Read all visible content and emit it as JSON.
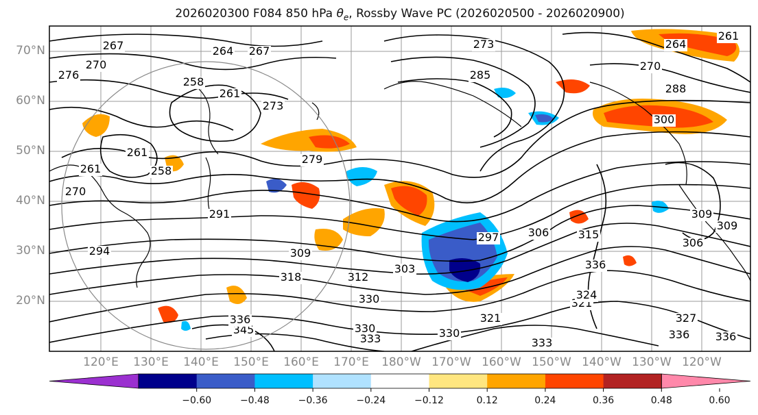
{
  "title": {
    "main": "2026020300 F084 850 hPa",
    "symbol": "θ",
    "subscript": "e",
    "rest": ", Rossby Wave PC (2026020500 - 2026020900)"
  },
  "map": {
    "lat_labels": [
      "70°N",
      "60°N",
      "50°N",
      "40°N",
      "30°N",
      "20°N"
    ],
    "lon_labels": [
      "120°E",
      "130°E",
      "140°E",
      "150°E",
      "160°E",
      "170°E",
      "180°W",
      "170°W",
      "160°W",
      "150°W",
      "140°W",
      "130°W",
      "120°W"
    ]
  },
  "colorbar": {
    "colors": [
      "#9b30d0",
      "#00008b",
      "#3a5cc8",
      "#00bfff",
      "#b0e2ff",
      "#ffffff",
      "#ffe680",
      "#ffa500",
      "#ff4500",
      "#b22222",
      "#ff88aa"
    ],
    "tick_labels": [
      "−0.60",
      "−0.48",
      "−0.36",
      "−0.24",
      "−0.12",
      "0.12",
      "0.24",
      "0.36",
      "0.48",
      "0.60"
    ]
  },
  "contours": {
    "labels": [
      "267",
      "264",
      "267",
      "273",
      "276",
      "270",
      "258",
      "261",
      "273",
      "285",
      "270",
      "264",
      "261",
      "288",
      "300",
      "261",
      "258",
      "261",
      "270",
      "279",
      "291",
      "297",
      "306",
      "315",
      "309",
      "306",
      "309",
      "294",
      "309",
      "318",
      "303",
      "312",
      "330",
      "321",
      "336",
      "330",
      "333",
      "345",
      "336",
      "330",
      "321",
      "324",
      "327",
      "333",
      "336",
      "336"
    ]
  }
}
